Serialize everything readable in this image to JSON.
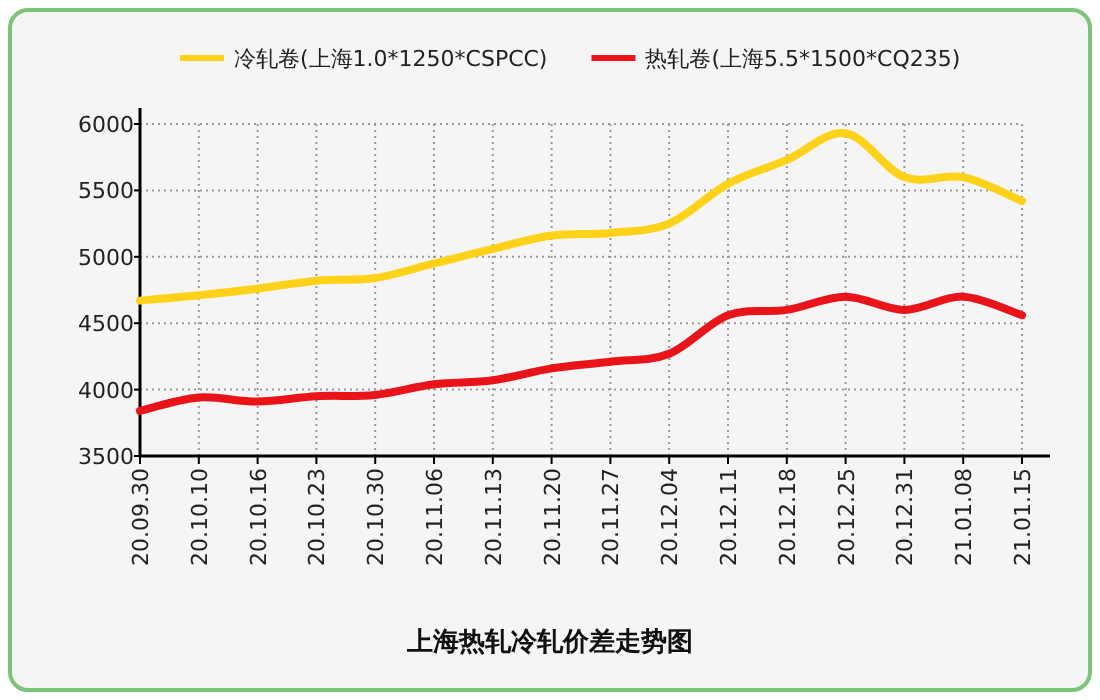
{
  "chart_data": {
    "type": "line",
    "title": "上海热轧冷轧价差走势图",
    "categories": [
      "20.09.30",
      "20.10.10",
      "20.10.16",
      "20.10.23",
      "20.10.30",
      "20.11.06",
      "20.11.13",
      "20.11.20",
      "20.11.27",
      "20.12.04",
      "20.12.11",
      "20.12.18",
      "20.12.25",
      "20.12.31",
      "21.01.08",
      "21.01.15"
    ],
    "series": [
      {
        "name": "冷轧卷(上海1.0*1250*CSPCC)",
        "color": "#ffd21a",
        "values": [
          4670,
          4710,
          4760,
          4820,
          4840,
          4950,
          5060,
          5160,
          5180,
          5250,
          5550,
          5730,
          5930,
          5600,
          5600,
          5420
        ]
      },
      {
        "name": "热轧卷(上海5.5*1500*CQ235)",
        "color": "#e8141a",
        "values": [
          3840,
          3940,
          3910,
          3950,
          3960,
          4040,
          4070,
          4160,
          4210,
          4270,
          4560,
          4600,
          4700,
          4600,
          4700,
          4560
        ]
      }
    ],
    "ylim": [
      3500,
      6000
    ],
    "yticks": [
      3500,
      4000,
      4500,
      5000,
      5500,
      6000
    ],
    "grid": true,
    "legend": "top"
  }
}
